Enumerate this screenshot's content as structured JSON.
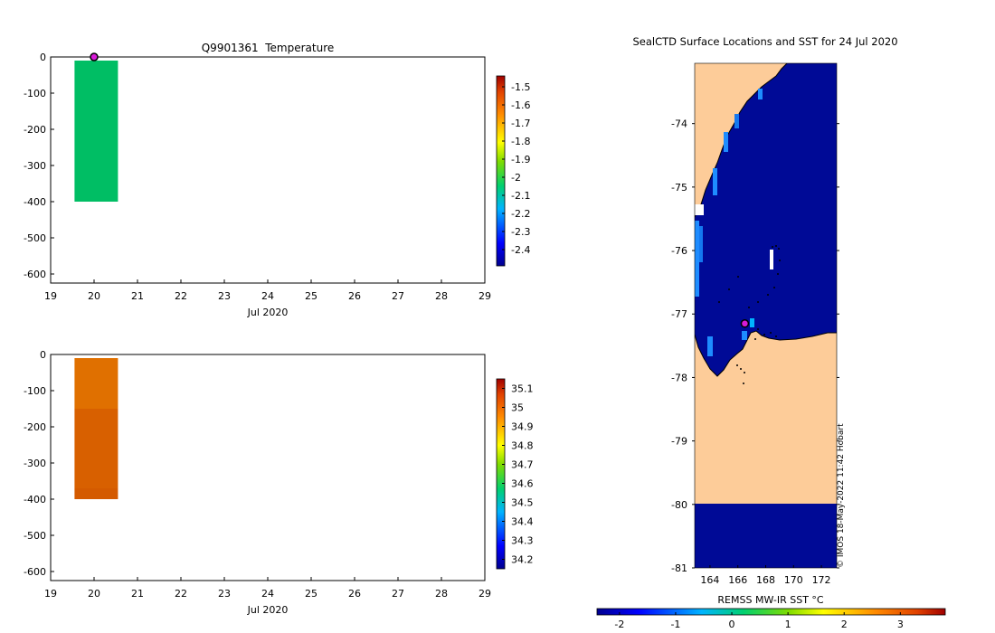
{
  "chart_data": [
    {
      "type": "bar",
      "title": "Q9901361  Temperature",
      "xlabel": "Jul 2020",
      "ylabel": "",
      "xlim": [
        19,
        29
      ],
      "ylim": [
        -625,
        0
      ],
      "xticks": [
        "19",
        "20",
        "21",
        "22",
        "23",
        "24",
        "25",
        "26",
        "27",
        "28",
        "29"
      ],
      "yticks": [
        "0",
        "-100",
        "-200",
        "-300",
        "-400",
        "-500",
        "-600"
      ],
      "cells": [
        {
          "x0": 19.55,
          "x1": 20.55,
          "y0": -10,
          "y1": -400,
          "value": -2.1,
          "color": "#00be64"
        }
      ],
      "marker": {
        "x": 20,
        "y": 0,
        "color": "#d81bd8"
      },
      "colorbar": {
        "ticks": [
          "-1.5",
          "-1.6",
          "-1.7",
          "-1.8",
          "-1.9",
          "-2",
          "-2.1",
          "-2.2",
          "-2.3",
          "-2.4"
        ],
        "range": [
          -2.49,
          -1.44
        ]
      }
    },
    {
      "type": "bar",
      "title": "",
      "xlabel": "Jul 2020",
      "ylabel": "",
      "xlim": [
        19,
        29
      ],
      "ylim": [
        -625,
        0
      ],
      "xticks": [
        "19",
        "20",
        "21",
        "22",
        "23",
        "24",
        "25",
        "26",
        "27",
        "28",
        "29"
      ],
      "yticks": [
        "0",
        "-100",
        "-200",
        "-300",
        "-400",
        "-500",
        "-600"
      ],
      "cells": [
        {
          "x0": 19.55,
          "x1": 20.55,
          "y0": -10,
          "y1": -150,
          "value": 34.97,
          "color": "#e07000"
        },
        {
          "x0": 19.55,
          "x1": 20.55,
          "y0": -150,
          "y1": -370,
          "value": 35.0,
          "color": "#d86000"
        },
        {
          "x0": 19.55,
          "x1": 20.55,
          "y0": -370,
          "y1": -400,
          "value": 35.02,
          "color": "#d45a00"
        }
      ],
      "colorbar": {
        "ticks": [
          "35.1",
          "35",
          "34.9",
          "34.8",
          "34.7",
          "34.6",
          "34.5",
          "34.4",
          "34.3",
          "34.2"
        ],
        "range": [
          34.15,
          35.15
        ]
      }
    },
    {
      "type": "heatmap",
      "title": "SealCTD Surface Locations and SST for 24 Jul 2020",
      "xticks": [
        "164",
        "166",
        "168",
        "170",
        "172"
      ],
      "yticks": [
        "-74",
        "-75",
        "-76",
        "-77",
        "-78",
        "-79",
        "-80",
        "-81"
      ],
      "xlim": [
        162.9,
        173.1
      ],
      "ylim": [
        -81.0,
        -73.05
      ],
      "sst_value": -1.9,
      "marker": {
        "lon": 166.5,
        "lat": -77.15,
        "color": "#d81bd8"
      },
      "colorbar_label": "REMSS MW-IR SST °C",
      "colorbar_ticks": [
        "-2",
        "-1",
        "0",
        "1",
        "2",
        "3"
      ],
      "colorbar_range": [
        -2.4,
        3.8
      ],
      "credit": "© IMOS 18-May-2022 11:42 Hobart"
    }
  ],
  "colors": {
    "land": "#fdcc99",
    "ice_ocean": "#000a96",
    "light_blue": "#1e8cff",
    "marker": "#d81bd8"
  }
}
